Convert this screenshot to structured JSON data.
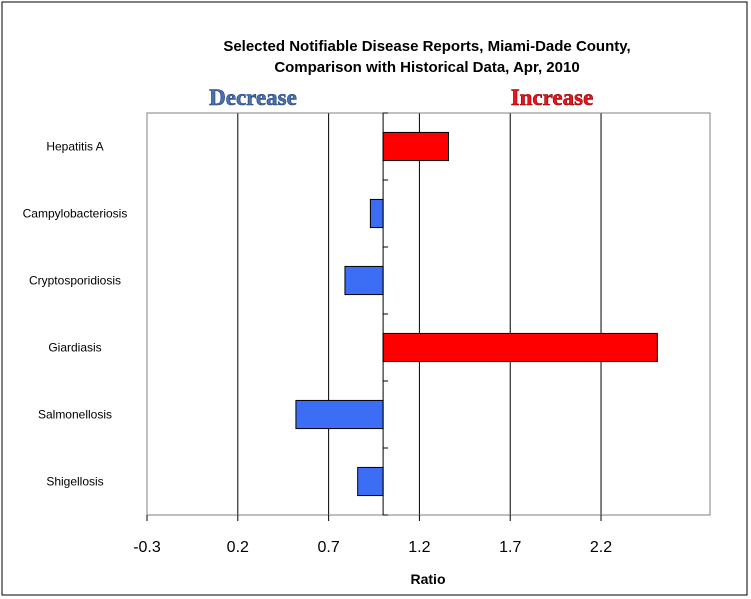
{
  "chart_data": {
    "type": "bar",
    "orientation": "horizontal",
    "title_lines": [
      "Selected Notifiable Disease Reports, Miami-Dade County,",
      "Comparison with Historical Data, Apr, 2010"
    ],
    "annotations": {
      "decrease": "Decrease",
      "increase": "Increase"
    },
    "xlabel": "Ratio",
    "ylabel": "",
    "xlim": [
      -0.3,
      2.8
    ],
    "baseline": 1.0,
    "xticks": [
      -0.3,
      0.2,
      0.7,
      1.2,
      1.7,
      2.2
    ],
    "xtick_labels": [
      "-0.3",
      "0.2",
      "0.7",
      "1.2",
      "1.7",
      "2.2"
    ],
    "grid": "vertical",
    "categories": [
      "Hepatitis A",
      "Campylobacteriosis",
      "Cryptosporidiosis",
      "Giardiasis",
      "Salmonellosis",
      "Shigellosis"
    ],
    "values": [
      1.36,
      0.93,
      0.79,
      2.51,
      0.52,
      0.86
    ],
    "colors": {
      "increase": "#ff0000",
      "decrease": "#3c6ef5",
      "decrease_label": "#4a72ac",
      "increase_label": "#e8141e"
    }
  }
}
